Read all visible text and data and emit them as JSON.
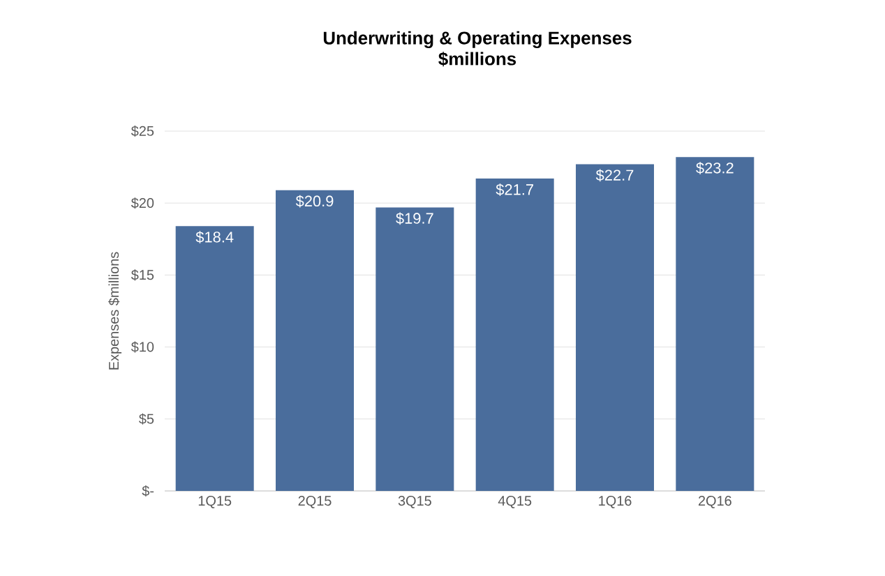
{
  "chart_data": {
    "type": "bar",
    "title": "Underwriting & Operating Expenses",
    "subtitle": "$millions",
    "ylabel": "Expenses $millions",
    "categories": [
      "1Q15",
      "2Q15",
      "3Q15",
      "4Q15",
      "1Q16",
      "2Q16"
    ],
    "values": [
      18.4,
      20.9,
      19.7,
      21.7,
      22.7,
      23.2
    ],
    "value_labels": [
      "$18.4",
      "$20.9",
      "$19.7",
      "$21.7",
      "$22.7",
      "$23.2"
    ],
    "color": "#4a6d9c",
    "ylim": [
      0,
      25
    ],
    "yticks": [
      {
        "value": 0,
        "label": "$-"
      },
      {
        "value": 5,
        "label": "$5"
      },
      {
        "value": 10,
        "label": "$10"
      },
      {
        "value": 15,
        "label": "$15"
      },
      {
        "value": 20,
        "label": "$20"
      },
      {
        "value": 25,
        "label": "$25"
      }
    ],
    "grid": "y"
  }
}
